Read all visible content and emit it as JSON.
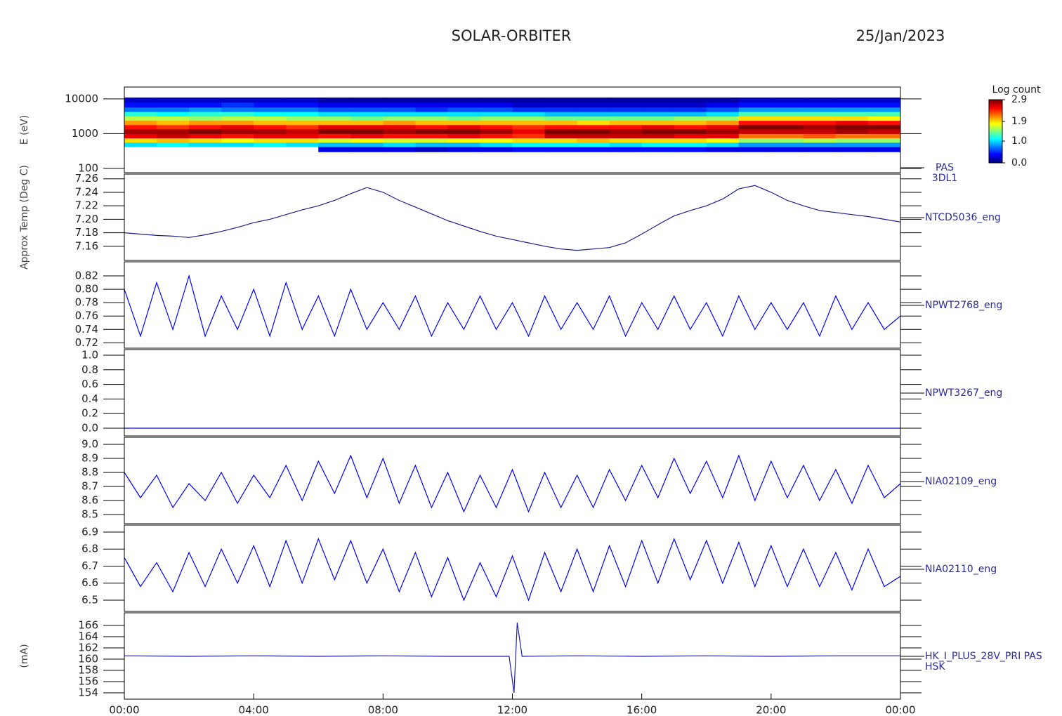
{
  "header": {
    "title": "SOLAR-ORBITER",
    "date": "25/Jan/2023"
  },
  "chart_data": [
    {
      "type": "heatmap",
      "ylog": true,
      "colormap": "jet",
      "ylabel": "E (eV)",
      "panel_label": [
        "PAS",
        "3DL1"
      ],
      "xlim": [
        0,
        24
      ],
      "ylim": [
        75,
        22000
      ],
      "yticks": [
        100,
        1000,
        10000
      ],
      "x_bins": [
        0,
        1,
        2,
        3,
        4,
        5,
        6,
        7,
        8,
        9,
        10,
        11,
        12,
        13,
        14,
        15,
        16,
        17,
        18,
        19,
        20,
        21,
        22,
        23,
        24
      ],
      "y_bins": [
        300,
        420,
        560,
        750,
        1000,
        1350,
        1800,
        2400,
        3200,
        4300,
        5800,
        8000,
        11000
      ],
      "z": [
        [
          null,
          1.0,
          1.9,
          2.6,
          2.8,
          2.5,
          2.1,
          1.6,
          1.2,
          0.7,
          0.4,
          0.2
        ],
        [
          null,
          1.1,
          2.0,
          2.7,
          2.8,
          2.4,
          2.0,
          1.6,
          1.1,
          0.7,
          0.4,
          0.2
        ],
        [
          null,
          1.0,
          1.9,
          2.6,
          2.9,
          2.5,
          2.1,
          1.5,
          1.2,
          0.8,
          0.4,
          0.2
        ],
        [
          null,
          1.0,
          1.8,
          2.5,
          2.8,
          2.6,
          2.1,
          1.6,
          1.2,
          0.7,
          0.5,
          0.2
        ],
        [
          null,
          1.1,
          1.9,
          2.6,
          2.8,
          2.5,
          2.0,
          1.6,
          1.1,
          0.7,
          0.4,
          0.2
        ],
        [
          null,
          1.0,
          1.9,
          2.6,
          2.7,
          2.4,
          2.0,
          1.5,
          1.1,
          0.7,
          0.4,
          0.2
        ],
        [
          0.3,
          0.9,
          1.7,
          2.5,
          2.9,
          2.6,
          2.0,
          1.5,
          1.0,
          0.6,
          0.3,
          0.1
        ],
        [
          0.3,
          0.9,
          1.8,
          2.6,
          2.9,
          2.6,
          2.0,
          1.4,
          1.0,
          0.6,
          0.3,
          0.1
        ],
        [
          0.3,
          1.0,
          1.7,
          2.5,
          2.8,
          2.6,
          2.1,
          1.5,
          1.0,
          0.6,
          0.3,
          0.1
        ],
        [
          0.2,
          0.9,
          1.7,
          2.5,
          2.9,
          2.5,
          2.0,
          1.5,
          1.0,
          0.5,
          0.3,
          0.1
        ],
        [
          0.3,
          0.9,
          1.8,
          2.6,
          2.9,
          2.6,
          2.0,
          1.4,
          1.0,
          0.6,
          0.3,
          0.1
        ],
        [
          0.3,
          1.0,
          1.8,
          2.5,
          2.8,
          2.5,
          2.0,
          1.5,
          1.0,
          0.6,
          0.3,
          0.1
        ],
        [
          0.4,
          1.1,
          1.9,
          2.4,
          2.6,
          2.4,
          2.0,
          1.5,
          1.0,
          0.5,
          0.2,
          0.1
        ],
        [
          0.4,
          1.1,
          1.9,
          2.7,
          2.9,
          2.5,
          2.0,
          1.4,
          0.9,
          0.5,
          0.2,
          0.1
        ],
        [
          0.4,
          1.1,
          2.0,
          2.7,
          2.9,
          2.5,
          1.9,
          1.4,
          0.9,
          0.5,
          0.2,
          0.1
        ],
        [
          0.4,
          1.0,
          1.9,
          2.7,
          2.8,
          2.5,
          2.0,
          1.4,
          0.9,
          0.5,
          0.2,
          0.1
        ],
        [
          0.4,
          1.1,
          1.9,
          2.7,
          2.9,
          2.6,
          2.0,
          1.4,
          0.9,
          0.5,
          0.2,
          0.1
        ],
        [
          0.4,
          1.1,
          1.9,
          2.6,
          2.9,
          2.5,
          2.0,
          1.5,
          0.9,
          0.5,
          0.2,
          0.1
        ],
        [
          0.3,
          1.0,
          1.8,
          2.6,
          2.8,
          2.6,
          2.1,
          1.5,
          1.0,
          0.6,
          0.3,
          0.1
        ],
        [
          0.3,
          0.8,
          1.5,
          2.2,
          2.7,
          2.9,
          2.5,
          1.9,
          1.3,
          0.8,
          0.4,
          0.2
        ],
        [
          0.3,
          0.8,
          1.5,
          2.2,
          2.7,
          2.9,
          2.5,
          1.9,
          1.3,
          0.8,
          0.4,
          0.2
        ],
        [
          0.3,
          0.8,
          1.6,
          2.3,
          2.7,
          2.8,
          2.5,
          1.9,
          1.3,
          0.8,
          0.4,
          0.2
        ],
        [
          0.3,
          0.8,
          1.5,
          2.2,
          2.8,
          2.9,
          2.6,
          1.9,
          1.3,
          0.8,
          0.4,
          0.2
        ],
        [
          0.3,
          0.8,
          1.5,
          2.2,
          2.7,
          2.9,
          2.5,
          1.8,
          1.3,
          0.8,
          0.4,
          0.2
        ]
      ],
      "colorbar": {
        "title": "Log count",
        "zlim": [
          0,
          2.9
        ],
        "ticks": [
          {
            "value": 0,
            "label": "0.0"
          },
          {
            "value": 1,
            "label": "1.0"
          },
          1.9,
          2.9
        ]
      }
    },
    {
      "type": "line",
      "ylabel": "Approx Temp (Deg C)",
      "panel_label": [
        "NTCD5036_eng"
      ],
      "xlim": [
        0,
        24
      ],
      "ylim": [
        7.139,
        7.267
      ],
      "yticks": [
        7.16,
        7.18,
        {
          "value": 7.2,
          "label": "7.20"
        },
        7.22,
        7.24,
        7.26
      ],
      "x": [
        0,
        0.5,
        1,
        1.5,
        2,
        2.5,
        3,
        3.5,
        4,
        4.5,
        5,
        5.5,
        6,
        6.5,
        7,
        7.5,
        8,
        8.5,
        9,
        9.5,
        10,
        10.5,
        11,
        11.5,
        12,
        12.5,
        13,
        13.5,
        14,
        14.5,
        15,
        15.5,
        16,
        16.5,
        17,
        17.5,
        18,
        18.5,
        19,
        19.5,
        20,
        20.5,
        21,
        21.5,
        22,
        22.5,
        23,
        23.5,
        24
      ],
      "series": [
        {
          "color": "#1c1c8c",
          "values": [
            7.18,
            7.178,
            7.176,
            7.175,
            7.173,
            7.177,
            7.182,
            7.188,
            7.195,
            7.2,
            7.207,
            7.214,
            7.22,
            7.228,
            7.238,
            7.247,
            7.24,
            7.228,
            7.218,
            7.208,
            7.198,
            7.19,
            7.182,
            7.175,
            7.17,
            7.165,
            7.16,
            7.156,
            7.154,
            7.156,
            7.158,
            7.165,
            7.178,
            7.192,
            7.205,
            7.213,
            7.22,
            7.23,
            7.245,
            7.25,
            7.24,
            7.228,
            7.22,
            7.213,
            7.21,
            7.207,
            7.204,
            7.2,
            7.196
          ]
        }
      ]
    },
    {
      "type": "line",
      "panel_label": [
        "NPWT2768_eng"
      ],
      "xlim": [
        0,
        24
      ],
      "ylim": [
        0.712,
        0.841
      ],
      "yticks": [
        0.72,
        0.74,
        0.76,
        0.78,
        {
          "value": 0.8,
          "label": "0.80"
        },
        0.82
      ],
      "x": [
        0,
        0.5,
        1,
        1.5,
        2,
        2.5,
        3,
        3.5,
        4,
        4.5,
        5,
        5.5,
        6,
        6.5,
        7,
        7.5,
        8,
        8.5,
        9,
        9.5,
        10,
        10.5,
        11,
        11.5,
        12,
        12.5,
        13,
        13.5,
        14,
        14.5,
        15,
        15.5,
        16,
        16.5,
        17,
        17.5,
        18,
        18.5,
        19,
        19.5,
        20,
        20.5,
        21,
        21.5,
        22,
        22.5,
        23,
        23.5,
        24
      ],
      "series": [
        {
          "color": "#0000ff",
          "values": [
            0.8,
            0.73,
            0.81,
            0.74,
            0.82,
            0.73,
            0.79,
            0.74,
            0.8,
            0.73,
            0.81,
            0.74,
            0.79,
            0.73,
            0.8,
            0.74,
            0.78,
            0.74,
            0.79,
            0.73,
            0.78,
            0.74,
            0.79,
            0.74,
            0.78,
            0.73,
            0.79,
            0.74,
            0.78,
            0.74,
            0.79,
            0.73,
            0.78,
            0.74,
            0.79,
            0.74,
            0.78,
            0.73,
            0.79,
            0.74,
            0.78,
            0.74,
            0.78,
            0.73,
            0.79,
            0.74,
            0.78,
            0.74,
            0.76
          ]
        }
      ]
    },
    {
      "type": "line",
      "panel_label": [
        "NPWT3267_eng"
      ],
      "xlim": [
        0,
        24
      ],
      "ylim": [
        -0.106,
        1.077
      ],
      "yticks": [
        {
          "value": 0,
          "label": "0.0"
        },
        0.2,
        0.4,
        0.6,
        0.8,
        {
          "value": 1,
          "label": "1.0"
        }
      ],
      "x": [
        0,
        24
      ],
      "series": [
        {
          "color": "#0000ff",
          "values": [
            0,
            0
          ]
        }
      ]
    },
    {
      "type": "line",
      "panel_label": [
        "NIA02109_eng"
      ],
      "xlim": [
        0,
        24
      ],
      "ylim": [
        8.435,
        9.05
      ],
      "yticks": [
        8.5,
        8.6,
        8.7,
        8.8,
        8.9,
        {
          "value": 9,
          "label": "9.0"
        }
      ],
      "x": [
        0,
        0.5,
        1,
        1.5,
        2,
        2.5,
        3,
        3.5,
        4,
        4.5,
        5,
        5.5,
        6,
        6.5,
        7,
        7.5,
        8,
        8.5,
        9,
        9.5,
        10,
        10.5,
        11,
        11.5,
        12,
        12.5,
        13,
        13.5,
        14,
        14.5,
        15,
        15.5,
        16,
        16.5,
        17,
        17.5,
        18,
        18.5,
        19,
        19.5,
        20,
        20.5,
        21,
        21.5,
        22,
        22.5,
        23,
        23.5,
        24
      ],
      "series": [
        {
          "color": "#0000ff",
          "values": [
            8.8,
            8.62,
            8.78,
            8.55,
            8.72,
            8.6,
            8.8,
            8.58,
            8.78,
            8.62,
            8.85,
            8.6,
            8.88,
            8.65,
            8.92,
            8.62,
            8.9,
            8.58,
            8.85,
            8.55,
            8.8,
            8.52,
            8.78,
            8.55,
            8.82,
            8.52,
            8.8,
            8.55,
            8.78,
            8.55,
            8.82,
            8.6,
            8.85,
            8.62,
            8.9,
            8.65,
            8.88,
            8.62,
            8.92,
            8.6,
            8.88,
            8.62,
            8.85,
            8.6,
            8.82,
            8.58,
            8.85,
            8.62,
            8.72
          ]
        }
      ]
    },
    {
      "type": "line",
      "panel_label": [
        "NIA02110_eng"
      ],
      "xlim": [
        0,
        24
      ],
      "ylim": [
        6.434,
        6.941
      ],
      "yticks": [
        6.5,
        6.6,
        6.7,
        6.8,
        6.9
      ],
      "x": [
        0,
        0.5,
        1,
        1.5,
        2,
        2.5,
        3,
        3.5,
        4,
        4.5,
        5,
        5.5,
        6,
        6.5,
        7,
        7.5,
        8,
        8.5,
        9,
        9.5,
        10,
        10.5,
        11,
        11.5,
        12,
        12.5,
        13,
        13.5,
        14,
        14.5,
        15,
        15.5,
        16,
        16.5,
        17,
        17.5,
        18,
        18.5,
        19,
        19.5,
        20,
        20.5,
        21,
        21.5,
        22,
        22.5,
        23,
        23.5,
        24
      ],
      "series": [
        {
          "color": "#0000ff",
          "values": [
            6.75,
            6.58,
            6.72,
            6.55,
            6.78,
            6.58,
            6.8,
            6.6,
            6.82,
            6.58,
            6.85,
            6.6,
            6.86,
            6.62,
            6.85,
            6.6,
            6.8,
            6.55,
            6.78,
            6.52,
            6.75,
            6.5,
            6.72,
            6.52,
            6.76,
            6.5,
            6.78,
            6.55,
            6.8,
            6.55,
            6.82,
            6.58,
            6.85,
            6.6,
            6.86,
            6.62,
            6.85,
            6.6,
            6.84,
            6.58,
            6.82,
            6.58,
            6.8,
            6.58,
            6.78,
            6.56,
            6.8,
            6.58,
            6.64
          ]
        }
      ]
    },
    {
      "type": "line",
      "ylabel": "(mA)",
      "panel_label": [
        "HK_I_PLUS_28V_PRI PAS",
        "HSK"
      ],
      "xlim": [
        0,
        24
      ],
      "ylim": [
        152.875,
        168.25
      ],
      "yticks": [
        154,
        156,
        158,
        160,
        162,
        164,
        166
      ],
      "xticks": [
        {
          "value": 0,
          "label": "00:00"
        },
        {
          "value": 4,
          "label": "04:00"
        },
        {
          "value": 8,
          "label": "08:00"
        },
        {
          "value": 12,
          "label": "12:00"
        },
        {
          "value": 16,
          "label": "16:00"
        },
        {
          "value": 20,
          "label": "20:00"
        },
        {
          "value": 24,
          "label": "00:00"
        }
      ],
      "x": [
        0,
        2,
        4,
        6,
        8,
        10,
        11.9,
        12.05,
        12.15,
        12.3,
        14,
        16,
        18,
        20,
        22,
        24
      ],
      "series": [
        {
          "color": "#2020a8",
          "values": [
            160.6,
            160.5,
            160.6,
            160.5,
            160.6,
            160.5,
            160.5,
            154,
            166.5,
            160.5,
            160.6,
            160.5,
            160.6,
            160.5,
            160.6,
            160.6
          ]
        }
      ]
    }
  ]
}
